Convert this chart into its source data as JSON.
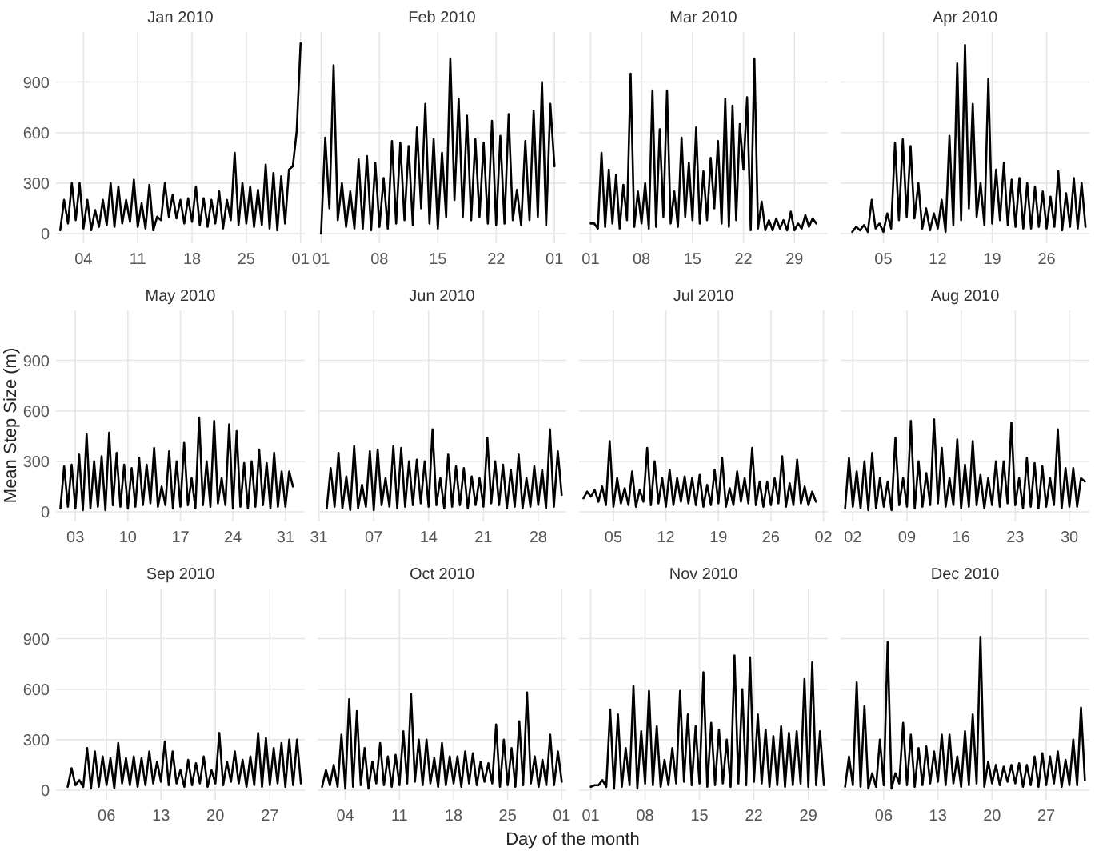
{
  "chart_data": [
    {
      "type": "line",
      "title": "Jan 2010",
      "color": "#000000",
      "grid": true,
      "ylim": [
        -57,
        1197
      ],
      "yticks": [
        0,
        300,
        600,
        900
      ],
      "xlim": [
        "2009-12-31T11:00",
        "2010-02-01T13:00"
      ],
      "xticks": [
        {
          "value": "2010-01-04",
          "label": "04"
        },
        {
          "value": "2010-01-11",
          "label": "11"
        },
        {
          "value": "2010-01-18",
          "label": "18"
        },
        {
          "value": "2010-01-25",
          "label": "25"
        },
        {
          "value": "2010-02-01",
          "label": "01"
        }
      ],
      "x": [
        "2010-01-01T00:00",
        "2010-01-01T12:00",
        "2010-01-02T00:00",
        "2010-01-02T12:00",
        "2010-01-03T00:00",
        "2010-01-03T12:00",
        "2010-01-04T00:00",
        "2010-01-04T12:00",
        "2010-01-05T00:00",
        "2010-01-05T12:00",
        "2010-01-06T00:00",
        "2010-01-06T12:00",
        "2010-01-07T00:00",
        "2010-01-07T12:00",
        "2010-01-08T00:00",
        "2010-01-08T12:00",
        "2010-01-09T00:00",
        "2010-01-09T12:00",
        "2010-01-10T00:00",
        "2010-01-10T12:00",
        "2010-01-11T00:00",
        "2010-01-11T12:00",
        "2010-01-12T00:00",
        "2010-01-12T12:00",
        "2010-01-13T00:00",
        "2010-01-13T12:00",
        "2010-01-14T00:00",
        "2010-01-14T12:00",
        "2010-01-15T00:00",
        "2010-01-15T12:00",
        "2010-01-16T00:00",
        "2010-01-16T12:00",
        "2010-01-17T00:00",
        "2010-01-17T12:00",
        "2010-01-18T00:00",
        "2010-01-18T12:00",
        "2010-01-19T00:00",
        "2010-01-19T12:00",
        "2010-01-20T00:00",
        "2010-01-20T12:00",
        "2010-01-21T00:00",
        "2010-01-21T12:00",
        "2010-01-22T00:00",
        "2010-01-22T12:00",
        "2010-01-23T00:00",
        "2010-01-23T12:00",
        "2010-01-24T00:00",
        "2010-01-24T12:00",
        "2010-01-25T00:00",
        "2010-01-25T12:00",
        "2010-01-26T00:00",
        "2010-01-26T12:00",
        "2010-01-27T00:00",
        "2010-01-27T12:00",
        "2010-01-28T00:00",
        "2010-01-28T12:00",
        "2010-01-29T00:00",
        "2010-01-29T12:00",
        "2010-01-30T00:00",
        "2010-01-30T12:00",
        "2010-01-31T00:00",
        "2010-01-31T12:00",
        "2010-02-01T00:00"
      ],
      "values": [
        20,
        200,
        60,
        300,
        80,
        300,
        30,
        200,
        20,
        140,
        40,
        200,
        50,
        300,
        40,
        280,
        60,
        200,
        70,
        320,
        40,
        180,
        30,
        290,
        20,
        100,
        80,
        300,
        100,
        230,
        90,
        200,
        60,
        210,
        70,
        280,
        50,
        210,
        40,
        200,
        60,
        250,
        30,
        200,
        80,
        480,
        50,
        300,
        60,
        280,
        40,
        260,
        50,
        410,
        30,
        360,
        20,
        340,
        60,
        380,
        400,
        610,
        1130
      ]
    },
    {
      "type": "line",
      "title": "Feb 2010",
      "color": "#000000",
      "grid": true,
      "tick_labels": "x",
      "ylim": [
        -57,
        1197
      ],
      "yticks": [
        0,
        300,
        600,
        900
      ],
      "xlim": [
        "2010-01-31T14:00",
        "2010-03-02T10:00"
      ],
      "xticks": [
        {
          "value": "2010-02-01",
          "label": "01"
        },
        {
          "value": "2010-02-08",
          "label": "08"
        },
        {
          "value": "2010-02-15",
          "label": "15"
        },
        {
          "value": "2010-02-22",
          "label": "22"
        },
        {
          "value": "2010-03-01",
          "label": "01"
        }
      ],
      "x": [
        "2010-02-01T00:00",
        "2010-02-01T12:00",
        "2010-02-02T00:00",
        "2010-02-02T12:00",
        "2010-02-03T00:00",
        "2010-02-03T12:00",
        "2010-02-04T00:00",
        "2010-02-04T12:00",
        "2010-02-05T00:00",
        "2010-02-05T12:00",
        "2010-02-06T00:00",
        "2010-02-06T12:00",
        "2010-02-07T00:00",
        "2010-02-07T12:00",
        "2010-02-08T00:00",
        "2010-02-08T12:00",
        "2010-02-09T00:00",
        "2010-02-09T12:00",
        "2010-02-10T00:00",
        "2010-02-10T12:00",
        "2010-02-11T00:00",
        "2010-02-11T12:00",
        "2010-02-12T00:00",
        "2010-02-12T12:00",
        "2010-02-13T00:00",
        "2010-02-13T12:00",
        "2010-02-14T00:00",
        "2010-02-14T12:00",
        "2010-02-15T00:00",
        "2010-02-15T12:00",
        "2010-02-16T00:00",
        "2010-02-16T12:00",
        "2010-02-17T00:00",
        "2010-02-17T12:00",
        "2010-02-18T00:00",
        "2010-02-18T12:00",
        "2010-02-19T00:00",
        "2010-02-19T12:00",
        "2010-02-20T00:00",
        "2010-02-20T12:00",
        "2010-02-21T00:00",
        "2010-02-21T12:00",
        "2010-02-22T00:00",
        "2010-02-22T12:00",
        "2010-02-23T00:00",
        "2010-02-23T12:00",
        "2010-02-24T00:00",
        "2010-02-24T12:00",
        "2010-02-25T00:00",
        "2010-02-25T12:00",
        "2010-02-26T00:00",
        "2010-02-26T12:00",
        "2010-02-27T00:00",
        "2010-02-27T12:00",
        "2010-02-28T00:00",
        "2010-02-28T12:00",
        "2010-03-01T00:00"
      ],
      "values": [
        0,
        570,
        150,
        1000,
        80,
        300,
        40,
        250,
        30,
        440,
        30,
        460,
        20,
        420,
        40,
        330,
        30,
        550,
        60,
        540,
        80,
        520,
        50,
        630,
        150,
        770,
        60,
        560,
        30,
        480,
        100,
        1040,
        200,
        800,
        100,
        700,
        80,
        560,
        100,
        540,
        60,
        670,
        50,
        580,
        60,
        710,
        80,
        260,
        50,
        550,
        80,
        730,
        100,
        900,
        50,
        770,
        400
      ]
    },
    {
      "type": "line",
      "title": "Mar 2010",
      "color": "#000000",
      "grid": true,
      "tick_labels": "x",
      "ylim": [
        -57,
        1197
      ],
      "yticks": [
        0,
        300,
        600,
        900
      ],
      "xlim": [
        "2010-02-27T10:00",
        "2010-04-02T14:00"
      ],
      "xticks": [
        {
          "value": "2010-03-01",
          "label": "01"
        },
        {
          "value": "2010-03-08",
          "label": "08"
        },
        {
          "value": "2010-03-15",
          "label": "15"
        },
        {
          "value": "2010-03-22",
          "label": "22"
        },
        {
          "value": "2010-03-29",
          "label": "29"
        }
      ],
      "x": [
        "2010-03-01T00:00",
        "2010-03-01T12:00",
        "2010-03-02T00:00",
        "2010-03-02T12:00",
        "2010-03-03T00:00",
        "2010-03-03T12:00",
        "2010-03-04T00:00",
        "2010-03-04T12:00",
        "2010-03-05T00:00",
        "2010-03-05T12:00",
        "2010-03-06T00:00",
        "2010-03-06T12:00",
        "2010-03-07T00:00",
        "2010-03-07T12:00",
        "2010-03-08T00:00",
        "2010-03-08T12:00",
        "2010-03-09T00:00",
        "2010-03-09T12:00",
        "2010-03-10T00:00",
        "2010-03-10T12:00",
        "2010-03-11T00:00",
        "2010-03-11T12:00",
        "2010-03-12T00:00",
        "2010-03-12T12:00",
        "2010-03-13T00:00",
        "2010-03-13T12:00",
        "2010-03-14T00:00",
        "2010-03-14T12:00",
        "2010-03-15T00:00",
        "2010-03-15T12:00",
        "2010-03-16T00:00",
        "2010-03-16T12:00",
        "2010-03-17T00:00",
        "2010-03-17T12:00",
        "2010-03-18T00:00",
        "2010-03-18T12:00",
        "2010-03-19T00:00",
        "2010-03-19T12:00",
        "2010-03-20T00:00",
        "2010-03-20T12:00",
        "2010-03-21T00:00",
        "2010-03-21T12:00",
        "2010-03-22T00:00",
        "2010-03-22T12:00",
        "2010-03-23T00:00",
        "2010-03-23T12:00",
        "2010-03-24T00:00",
        "2010-03-24T12:00",
        "2010-03-25T00:00",
        "2010-03-25T12:00",
        "2010-03-26T00:00",
        "2010-03-26T12:00",
        "2010-03-27T00:00",
        "2010-03-27T12:00",
        "2010-03-28T00:00",
        "2010-03-28T12:00",
        "2010-03-29T00:00",
        "2010-03-29T12:00",
        "2010-03-30T00:00",
        "2010-03-30T12:00",
        "2010-03-31T00:00",
        "2010-03-31T12:00",
        "2010-04-01T00:00"
      ],
      "values": [
        60,
        60,
        30,
        480,
        40,
        380,
        60,
        350,
        30,
        290,
        80,
        950,
        40,
        250,
        60,
        300,
        30,
        850,
        40,
        620,
        100,
        850,
        60,
        250,
        40,
        570,
        100,
        420,
        80,
        630,
        60,
        370,
        80,
        450,
        150,
        550,
        60,
        800,
        40,
        760,
        80,
        650,
        380,
        810,
        20,
        1040,
        30,
        190,
        20,
        80,
        20,
        90,
        30,
        80,
        20,
        130,
        20,
        60,
        30,
        110,
        40,
        90,
        60
      ]
    },
    {
      "type": "line",
      "title": "Apr 2010",
      "color": "#000000",
      "grid": true,
      "tick_labels": "x",
      "ylim": [
        -57,
        1197
      ],
      "yticks": [
        0,
        300,
        600,
        900
      ],
      "xlim": [
        "2010-03-30T12:00",
        "2010-05-01T12:00"
      ],
      "xticks": [
        {
          "value": "2010-04-05",
          "label": "05"
        },
        {
          "value": "2010-04-12",
          "label": "12"
        },
        {
          "value": "2010-04-19",
          "label": "19"
        },
        {
          "value": "2010-04-26",
          "label": "26"
        }
      ],
      "x": [
        "2010-04-01T00:00",
        "2010-04-01T12:00",
        "2010-04-02T00:00",
        "2010-04-02T12:00",
        "2010-04-03T00:00",
        "2010-04-03T12:00",
        "2010-04-04T00:00",
        "2010-04-04T12:00",
        "2010-04-05T00:00",
        "2010-04-05T12:00",
        "2010-04-06T00:00",
        "2010-04-06T12:00",
        "2010-04-07T00:00",
        "2010-04-07T12:00",
        "2010-04-08T00:00",
        "2010-04-08T12:00",
        "2010-04-09T00:00",
        "2010-04-09T12:00",
        "2010-04-10T00:00",
        "2010-04-10T12:00",
        "2010-04-11T00:00",
        "2010-04-11T12:00",
        "2010-04-12T00:00",
        "2010-04-12T12:00",
        "2010-04-13T00:00",
        "2010-04-13T12:00",
        "2010-04-14T00:00",
        "2010-04-14T12:00",
        "2010-04-15T00:00",
        "2010-04-15T12:00",
        "2010-04-16T00:00",
        "2010-04-16T12:00",
        "2010-04-17T00:00",
        "2010-04-17T12:00",
        "2010-04-18T00:00",
        "2010-04-18T12:00",
        "2010-04-19T00:00",
        "2010-04-19T12:00",
        "2010-04-20T00:00",
        "2010-04-20T12:00",
        "2010-04-21T00:00",
        "2010-04-21T12:00",
        "2010-04-22T00:00",
        "2010-04-22T12:00",
        "2010-04-23T00:00",
        "2010-04-23T12:00",
        "2010-04-24T00:00",
        "2010-04-24T12:00",
        "2010-04-25T00:00",
        "2010-04-25T12:00",
        "2010-04-26T00:00",
        "2010-04-26T12:00",
        "2010-04-27T00:00",
        "2010-04-27T12:00",
        "2010-04-28T00:00",
        "2010-04-28T12:00",
        "2010-04-29T00:00",
        "2010-04-29T12:00",
        "2010-04-30T00:00",
        "2010-04-30T12:00",
        "2010-05-01T00:00"
      ],
      "values": [
        10,
        40,
        20,
        50,
        10,
        200,
        30,
        60,
        10,
        120,
        30,
        540,
        80,
        560,
        100,
        520,
        90,
        300,
        30,
        150,
        20,
        120,
        30,
        200,
        10,
        580,
        50,
        1010,
        80,
        1120,
        150,
        770,
        100,
        300,
        50,
        920,
        60,
        380,
        80,
        420,
        50,
        320,
        40,
        330,
        30,
        300,
        30,
        280,
        40,
        250,
        30,
        220,
        40,
        370,
        20,
        240,
        40,
        330,
        30,
        300,
        40
      ]
    },
    {
      "type": "line",
      "title": "May 2010",
      "ylabel": "Mean Step Size (m)",
      "color": "#000000",
      "grid": true,
      "ylim": [
        -57,
        1197
      ],
      "yticks": [
        0,
        300,
        600,
        900
      ],
      "xlim": [
        "2010-04-30T10:00",
        "2010-06-02T14:00"
      ],
      "xticks": [
        {
          "value": "2010-05-03",
          "label": "03"
        },
        {
          "value": "2010-05-10",
          "label": "10"
        },
        {
          "value": "2010-05-17",
          "label": "17"
        },
        {
          "value": "2010-05-24",
          "label": "24"
        },
        {
          "value": "2010-05-31",
          "label": "31"
        }
      ],
      "x": [
        "2010-05-01T00:00",
        "2010-05-01T12:00",
        "2010-05-02T00:00",
        "2010-05-02T12:00",
        "2010-05-03T00:00",
        "2010-05-03T12:00",
        "2010-05-04T00:00",
        "2010-05-04T12:00",
        "2010-05-05T00:00",
        "2010-05-05T12:00",
        "2010-05-06T00:00",
        "2010-05-06T12:00",
        "2010-05-07T00:00",
        "2010-05-07T12:00",
        "2010-05-08T00:00",
        "2010-05-08T12:00",
        "2010-05-09T00:00",
        "2010-05-09T12:00",
        "2010-05-10T00:00",
        "2010-05-10T12:00",
        "2010-05-11T00:00",
        "2010-05-11T12:00",
        "2010-05-12T00:00",
        "2010-05-12T12:00",
        "2010-05-13T00:00",
        "2010-05-13T12:00",
        "2010-05-14T00:00",
        "2010-05-14T12:00",
        "2010-05-15T00:00",
        "2010-05-15T12:00",
        "2010-05-16T00:00",
        "2010-05-16T12:00",
        "2010-05-17T00:00",
        "2010-05-17T12:00",
        "2010-05-18T00:00",
        "2010-05-18T12:00",
        "2010-05-19T00:00",
        "2010-05-19T12:00",
        "2010-05-20T00:00",
        "2010-05-20T12:00",
        "2010-05-21T00:00",
        "2010-05-21T12:00",
        "2010-05-22T00:00",
        "2010-05-22T12:00",
        "2010-05-23T00:00",
        "2010-05-23T12:00",
        "2010-05-24T00:00",
        "2010-05-24T12:00",
        "2010-05-25T00:00",
        "2010-05-25T12:00",
        "2010-05-26T00:00",
        "2010-05-26T12:00",
        "2010-05-27T00:00",
        "2010-05-27T12:00",
        "2010-05-28T00:00",
        "2010-05-28T12:00",
        "2010-05-29T00:00",
        "2010-05-29T12:00",
        "2010-05-30T00:00",
        "2010-05-30T12:00",
        "2010-05-31T00:00",
        "2010-05-31T12:00",
        "2010-06-01T00:00"
      ],
      "values": [
        20,
        270,
        30,
        280,
        20,
        340,
        10,
        460,
        20,
        300,
        30,
        330,
        10,
        470,
        40,
        350,
        30,
        280,
        20,
        260,
        30,
        320,
        40,
        280,
        50,
        380,
        30,
        150,
        40,
        360,
        20,
        300,
        30,
        410,
        40,
        200,
        20,
        560,
        40,
        300,
        30,
        540,
        50,
        200,
        40,
        520,
        20,
        480,
        30,
        290,
        20,
        300,
        30,
        370,
        40,
        290,
        20,
        350,
        30,
        240,
        30,
        240,
        150
      ]
    },
    {
      "type": "line",
      "title": "Jun 2010",
      "color": "#000000",
      "grid": true,
      "tick_labels": "x",
      "ylim": [
        -57,
        1197
      ],
      "yticks": [
        0,
        300,
        600,
        900
      ],
      "xlim": [
        "2010-05-30T20:00",
        "2010-07-01T14:00"
      ],
      "xticks": [
        {
          "value": "2010-05-31",
          "label": "31"
        },
        {
          "value": "2010-06-07",
          "label": "07"
        },
        {
          "value": "2010-06-14",
          "label": "14"
        },
        {
          "value": "2010-06-21",
          "label": "21"
        },
        {
          "value": "2010-06-28",
          "label": "28"
        }
      ],
      "x": [
        "2010-06-01T00:00",
        "2010-06-01T12:00",
        "2010-06-02T00:00",
        "2010-06-02T12:00",
        "2010-06-03T00:00",
        "2010-06-03T12:00",
        "2010-06-04T00:00",
        "2010-06-04T12:00",
        "2010-06-05T00:00",
        "2010-06-05T12:00",
        "2010-06-06T00:00",
        "2010-06-06T12:00",
        "2010-06-07T00:00",
        "2010-06-07T12:00",
        "2010-06-08T00:00",
        "2010-06-08T12:00",
        "2010-06-09T00:00",
        "2010-06-09T12:00",
        "2010-06-10T00:00",
        "2010-06-10T12:00",
        "2010-06-11T00:00",
        "2010-06-11T12:00",
        "2010-06-12T00:00",
        "2010-06-12T12:00",
        "2010-06-13T00:00",
        "2010-06-13T12:00",
        "2010-06-14T00:00",
        "2010-06-14T12:00",
        "2010-06-15T00:00",
        "2010-06-15T12:00",
        "2010-06-16T00:00",
        "2010-06-16T12:00",
        "2010-06-17T00:00",
        "2010-06-17T12:00",
        "2010-06-18T00:00",
        "2010-06-18T12:00",
        "2010-06-19T00:00",
        "2010-06-19T12:00",
        "2010-06-20T00:00",
        "2010-06-20T12:00",
        "2010-06-21T00:00",
        "2010-06-21T12:00",
        "2010-06-22T00:00",
        "2010-06-22T12:00",
        "2010-06-23T00:00",
        "2010-06-23T12:00",
        "2010-06-24T00:00",
        "2010-06-24T12:00",
        "2010-06-25T00:00",
        "2010-06-25T12:00",
        "2010-06-26T00:00",
        "2010-06-26T12:00",
        "2010-06-27T00:00",
        "2010-06-27T12:00",
        "2010-06-28T00:00",
        "2010-06-28T12:00",
        "2010-06-29T00:00",
        "2010-06-29T12:00",
        "2010-06-30T00:00",
        "2010-06-30T12:00",
        "2010-07-01T00:00"
      ],
      "values": [
        20,
        260,
        30,
        350,
        20,
        210,
        10,
        390,
        20,
        160,
        30,
        360,
        10,
        370,
        40,
        200,
        30,
        390,
        20,
        380,
        30,
        300,
        40,
        310,
        50,
        300,
        30,
        490,
        40,
        200,
        20,
        340,
        30,
        270,
        40,
        260,
        20,
        210,
        40,
        200,
        30,
        440,
        50,
        300,
        40,
        280,
        20,
        250,
        30,
        340,
        20,
        200,
        30,
        270,
        40,
        250,
        20,
        490,
        30,
        360,
        100
      ]
    },
    {
      "type": "line",
      "title": "Jul 2010",
      "color": "#000000",
      "grid": true,
      "tick_labels": "x",
      "ylim": [
        -57,
        1197
      ],
      "yticks": [
        0,
        300,
        600,
        900
      ],
      "xlim": [
        "2010-06-30T10:00",
        "2010-08-02T14:00"
      ],
      "xticks": [
        {
          "value": "2010-07-05",
          "label": "05"
        },
        {
          "value": "2010-07-12",
          "label": "12"
        },
        {
          "value": "2010-07-19",
          "label": "19"
        },
        {
          "value": "2010-07-26",
          "label": "26"
        },
        {
          "value": "2010-08-02",
          "label": "02"
        }
      ],
      "x": [
        "2010-07-01T00:00",
        "2010-07-01T12:00",
        "2010-07-02T00:00",
        "2010-07-02T12:00",
        "2010-07-03T00:00",
        "2010-07-03T12:00",
        "2010-07-04T00:00",
        "2010-07-04T12:00",
        "2010-07-05T00:00",
        "2010-07-05T12:00",
        "2010-07-06T00:00",
        "2010-07-06T12:00",
        "2010-07-07T00:00",
        "2010-07-07T12:00",
        "2010-07-08T00:00",
        "2010-07-08T12:00",
        "2010-07-09T00:00",
        "2010-07-09T12:00",
        "2010-07-10T00:00",
        "2010-07-10T12:00",
        "2010-07-11T00:00",
        "2010-07-11T12:00",
        "2010-07-12T00:00",
        "2010-07-12T12:00",
        "2010-07-13T00:00",
        "2010-07-13T12:00",
        "2010-07-14T00:00",
        "2010-07-14T12:00",
        "2010-07-15T00:00",
        "2010-07-15T12:00",
        "2010-07-16T00:00",
        "2010-07-16T12:00",
        "2010-07-17T00:00",
        "2010-07-17T12:00",
        "2010-07-18T00:00",
        "2010-07-18T12:00",
        "2010-07-19T00:00",
        "2010-07-19T12:00",
        "2010-07-20T00:00",
        "2010-07-20T12:00",
        "2010-07-21T00:00",
        "2010-07-21T12:00",
        "2010-07-22T00:00",
        "2010-07-22T12:00",
        "2010-07-23T00:00",
        "2010-07-23T12:00",
        "2010-07-24T00:00",
        "2010-07-24T12:00",
        "2010-07-25T00:00",
        "2010-07-25T12:00",
        "2010-07-26T00:00",
        "2010-07-26T12:00",
        "2010-07-27T00:00",
        "2010-07-27T12:00",
        "2010-07-28T00:00",
        "2010-07-28T12:00",
        "2010-07-29T00:00",
        "2010-07-29T12:00",
        "2010-07-30T00:00",
        "2010-07-30T12:00",
        "2010-07-31T00:00",
        "2010-07-31T12:00",
        "2010-08-01T00:00"
      ],
      "values": [
        80,
        120,
        90,
        130,
        60,
        150,
        40,
        420,
        30,
        200,
        50,
        140,
        40,
        240,
        30,
        130,
        60,
        380,
        40,
        300,
        50,
        200,
        30,
        250,
        40,
        200,
        60,
        210,
        50,
        200,
        40,
        220,
        30,
        160,
        40,
        250,
        50,
        320,
        30,
        140,
        40,
        240,
        60,
        200,
        50,
        380,
        40,
        180,
        30,
        180,
        40,
        200,
        50,
        330,
        30,
        170,
        40,
        310,
        50,
        150,
        40,
        120,
        60
      ]
    },
    {
      "type": "line",
      "title": "Aug 2010",
      "color": "#000000",
      "grid": true,
      "tick_labels": "x",
      "ylim": [
        -57,
        1197
      ],
      "yticks": [
        0,
        300,
        600,
        900
      ],
      "xlim": [
        "2010-07-31T10:00",
        "2010-09-01T14:00"
      ],
      "xticks": [
        {
          "value": "2010-08-02",
          "label": "02"
        },
        {
          "value": "2010-08-09",
          "label": "09"
        },
        {
          "value": "2010-08-16",
          "label": "16"
        },
        {
          "value": "2010-08-23",
          "label": "23"
        },
        {
          "value": "2010-08-30",
          "label": "30"
        }
      ],
      "x": [
        "2010-08-01T00:00",
        "2010-08-01T12:00",
        "2010-08-02T00:00",
        "2010-08-02T12:00",
        "2010-08-03T00:00",
        "2010-08-03T12:00",
        "2010-08-04T00:00",
        "2010-08-04T12:00",
        "2010-08-05T00:00",
        "2010-08-05T12:00",
        "2010-08-06T00:00",
        "2010-08-06T12:00",
        "2010-08-07T00:00",
        "2010-08-07T12:00",
        "2010-08-08T00:00",
        "2010-08-08T12:00",
        "2010-08-09T00:00",
        "2010-08-09T12:00",
        "2010-08-10T00:00",
        "2010-08-10T12:00",
        "2010-08-11T00:00",
        "2010-08-11T12:00",
        "2010-08-12T00:00",
        "2010-08-12T12:00",
        "2010-08-13T00:00",
        "2010-08-13T12:00",
        "2010-08-14T00:00",
        "2010-08-14T12:00",
        "2010-08-15T00:00",
        "2010-08-15T12:00",
        "2010-08-16T00:00",
        "2010-08-16T12:00",
        "2010-08-17T00:00",
        "2010-08-17T12:00",
        "2010-08-18T00:00",
        "2010-08-18T12:00",
        "2010-08-19T00:00",
        "2010-08-19T12:00",
        "2010-08-20T00:00",
        "2010-08-20T12:00",
        "2010-08-21T00:00",
        "2010-08-21T12:00",
        "2010-08-22T00:00",
        "2010-08-22T12:00",
        "2010-08-23T00:00",
        "2010-08-23T12:00",
        "2010-08-24T00:00",
        "2010-08-24T12:00",
        "2010-08-25T00:00",
        "2010-08-25T12:00",
        "2010-08-26T00:00",
        "2010-08-26T12:00",
        "2010-08-27T00:00",
        "2010-08-27T12:00",
        "2010-08-28T00:00",
        "2010-08-28T12:00",
        "2010-08-29T00:00",
        "2010-08-29T12:00",
        "2010-08-30T00:00",
        "2010-08-30T12:00",
        "2010-08-31T00:00",
        "2010-08-31T12:00",
        "2010-09-01T00:00"
      ],
      "values": [
        20,
        320,
        30,
        240,
        20,
        300,
        10,
        350,
        20,
        200,
        30,
        180,
        10,
        440,
        40,
        200,
        30,
        540,
        20,
        300,
        30,
        230,
        40,
        550,
        50,
        380,
        30,
        200,
        40,
        430,
        20,
        280,
        30,
        420,
        40,
        220,
        20,
        200,
        40,
        300,
        30,
        300,
        50,
        530,
        40,
        200,
        20,
        320,
        30,
        290,
        20,
        270,
        30,
        200,
        40,
        490,
        20,
        260,
        30,
        260,
        30,
        200,
        180
      ]
    },
    {
      "type": "line",
      "title": "Sep 2010",
      "color": "#000000",
      "grid": true,
      "ylim": [
        -57,
        1197
      ],
      "yticks": [
        0,
        300,
        600,
        900
      ],
      "xlim": [
        "2010-08-30T12:00",
        "2010-10-01T12:00"
      ],
      "xticks": [
        {
          "value": "2010-09-06",
          "label": "06"
        },
        {
          "value": "2010-09-13",
          "label": "13"
        },
        {
          "value": "2010-09-20",
          "label": "20"
        },
        {
          "value": "2010-09-27",
          "label": "27"
        }
      ],
      "x": [
        "2010-09-01T00:00",
        "2010-09-01T12:00",
        "2010-09-02T00:00",
        "2010-09-02T12:00",
        "2010-09-03T00:00",
        "2010-09-03T12:00",
        "2010-09-04T00:00",
        "2010-09-04T12:00",
        "2010-09-05T00:00",
        "2010-09-05T12:00",
        "2010-09-06T00:00",
        "2010-09-06T12:00",
        "2010-09-07T00:00",
        "2010-09-07T12:00",
        "2010-09-08T00:00",
        "2010-09-08T12:00",
        "2010-09-09T00:00",
        "2010-09-09T12:00",
        "2010-09-10T00:00",
        "2010-09-10T12:00",
        "2010-09-11T00:00",
        "2010-09-11T12:00",
        "2010-09-12T00:00",
        "2010-09-12T12:00",
        "2010-09-13T00:00",
        "2010-09-13T12:00",
        "2010-09-14T00:00",
        "2010-09-14T12:00",
        "2010-09-15T00:00",
        "2010-09-15T12:00",
        "2010-09-16T00:00",
        "2010-09-16T12:00",
        "2010-09-17T00:00",
        "2010-09-17T12:00",
        "2010-09-18T00:00",
        "2010-09-18T12:00",
        "2010-09-19T00:00",
        "2010-09-19T12:00",
        "2010-09-20T00:00",
        "2010-09-20T12:00",
        "2010-09-21T00:00",
        "2010-09-21T12:00",
        "2010-09-22T00:00",
        "2010-09-22T12:00",
        "2010-09-23T00:00",
        "2010-09-23T12:00",
        "2010-09-24T00:00",
        "2010-09-24T12:00",
        "2010-09-25T00:00",
        "2010-09-25T12:00",
        "2010-09-26T00:00",
        "2010-09-26T12:00",
        "2010-09-27T00:00",
        "2010-09-27T12:00",
        "2010-09-28T00:00",
        "2010-09-28T12:00",
        "2010-09-29T00:00",
        "2010-09-29T12:00",
        "2010-09-30T00:00",
        "2010-09-30T12:00",
        "2010-10-01T00:00"
      ],
      "values": [
        20,
        130,
        30,
        60,
        20,
        250,
        10,
        230,
        20,
        200,
        30,
        190,
        10,
        280,
        40,
        190,
        30,
        200,
        20,
        190,
        30,
        230,
        40,
        170,
        50,
        290,
        30,
        230,
        40,
        120,
        20,
        180,
        30,
        160,
        40,
        200,
        20,
        120,
        40,
        340,
        30,
        170,
        50,
        230,
        40,
        180,
        20,
        200,
        30,
        340,
        20,
        310,
        30,
        250,
        40,
        280,
        20,
        300,
        30,
        300,
        40
      ]
    },
    {
      "type": "line",
      "title": "Oct 2010",
      "xlabel": "Day of the month",
      "color": "#000000",
      "grid": true,
      "tick_labels": "x",
      "ylim": [
        -57,
        1197
      ],
      "yticks": [
        0,
        300,
        600,
        900
      ],
      "xlim": [
        "2010-09-30T10:00",
        "2010-11-01T14:00"
      ],
      "xticks": [
        {
          "value": "2010-10-04",
          "label": "04"
        },
        {
          "value": "2010-10-11",
          "label": "11"
        },
        {
          "value": "2010-10-18",
          "label": "18"
        },
        {
          "value": "2010-10-25",
          "label": "25"
        },
        {
          "value": "2010-11-01",
          "label": "01"
        }
      ],
      "x": [
        "2010-10-01T00:00",
        "2010-10-01T12:00",
        "2010-10-02T00:00",
        "2010-10-02T12:00",
        "2010-10-03T00:00",
        "2010-10-03T12:00",
        "2010-10-04T00:00",
        "2010-10-04T12:00",
        "2010-10-05T00:00",
        "2010-10-05T12:00",
        "2010-10-06T00:00",
        "2010-10-06T12:00",
        "2010-10-07T00:00",
        "2010-10-07T12:00",
        "2010-10-08T00:00",
        "2010-10-08T12:00",
        "2010-10-09T00:00",
        "2010-10-09T12:00",
        "2010-10-10T00:00",
        "2010-10-10T12:00",
        "2010-10-11T00:00",
        "2010-10-11T12:00",
        "2010-10-12T00:00",
        "2010-10-12T12:00",
        "2010-10-13T00:00",
        "2010-10-13T12:00",
        "2010-10-14T00:00",
        "2010-10-14T12:00",
        "2010-10-15T00:00",
        "2010-10-15T12:00",
        "2010-10-16T00:00",
        "2010-10-16T12:00",
        "2010-10-17T00:00",
        "2010-10-17T12:00",
        "2010-10-18T00:00",
        "2010-10-18T12:00",
        "2010-10-19T00:00",
        "2010-10-19T12:00",
        "2010-10-20T00:00",
        "2010-10-20T12:00",
        "2010-10-21T00:00",
        "2010-10-21T12:00",
        "2010-10-22T00:00",
        "2010-10-22T12:00",
        "2010-10-23T00:00",
        "2010-10-23T12:00",
        "2010-10-24T00:00",
        "2010-10-24T12:00",
        "2010-10-25T00:00",
        "2010-10-25T12:00",
        "2010-10-26T00:00",
        "2010-10-26T12:00",
        "2010-10-27T00:00",
        "2010-10-27T12:00",
        "2010-10-28T00:00",
        "2010-10-28T12:00",
        "2010-10-29T00:00",
        "2010-10-29T12:00",
        "2010-10-30T00:00",
        "2010-10-30T12:00",
        "2010-10-31T00:00",
        "2010-10-31T12:00",
        "2010-11-01T00:00"
      ],
      "values": [
        20,
        120,
        30,
        150,
        20,
        330,
        10,
        540,
        20,
        470,
        30,
        250,
        10,
        170,
        40,
        280,
        30,
        200,
        20,
        210,
        30,
        350,
        40,
        570,
        50,
        300,
        30,
        300,
        40,
        190,
        20,
        280,
        30,
        200,
        40,
        200,
        20,
        230,
        40,
        220,
        30,
        170,
        50,
        160,
        40,
        390,
        20,
        300,
        30,
        250,
        20,
        410,
        30,
        580,
        40,
        200,
        20,
        180,
        30,
        330,
        30,
        230,
        50
      ]
    },
    {
      "type": "line",
      "title": "Nov 2010",
      "color": "#000000",
      "grid": true,
      "tick_labels": "x",
      "ylim": [
        -57,
        1197
      ],
      "yticks": [
        0,
        300,
        600,
        900
      ],
      "xlim": [
        "2010-10-30T12:00",
        "2010-12-01T12:00"
      ],
      "xticks": [
        {
          "value": "2010-11-01",
          "label": "01"
        },
        {
          "value": "2010-11-08",
          "label": "08"
        },
        {
          "value": "2010-11-15",
          "label": "15"
        },
        {
          "value": "2010-11-22",
          "label": "22"
        },
        {
          "value": "2010-11-29",
          "label": "29"
        }
      ],
      "x": [
        "2010-11-01T00:00",
        "2010-11-01T12:00",
        "2010-11-02T00:00",
        "2010-11-02T12:00",
        "2010-11-03T00:00",
        "2010-11-03T12:00",
        "2010-11-04T00:00",
        "2010-11-04T12:00",
        "2010-11-05T00:00",
        "2010-11-05T12:00",
        "2010-11-06T00:00",
        "2010-11-06T12:00",
        "2010-11-07T00:00",
        "2010-11-07T12:00",
        "2010-11-08T00:00",
        "2010-11-08T12:00",
        "2010-11-09T00:00",
        "2010-11-09T12:00",
        "2010-11-10T00:00",
        "2010-11-10T12:00",
        "2010-11-11T00:00",
        "2010-11-11T12:00",
        "2010-11-12T00:00",
        "2010-11-12T12:00",
        "2010-11-13T00:00",
        "2010-11-13T12:00",
        "2010-11-14T00:00",
        "2010-11-14T12:00",
        "2010-11-15T00:00",
        "2010-11-15T12:00",
        "2010-11-16T00:00",
        "2010-11-16T12:00",
        "2010-11-17T00:00",
        "2010-11-17T12:00",
        "2010-11-18T00:00",
        "2010-11-18T12:00",
        "2010-11-19T00:00",
        "2010-11-19T12:00",
        "2010-11-20T00:00",
        "2010-11-20T12:00",
        "2010-11-21T00:00",
        "2010-11-21T12:00",
        "2010-11-22T00:00",
        "2010-11-22T12:00",
        "2010-11-23T00:00",
        "2010-11-23T12:00",
        "2010-11-24T00:00",
        "2010-11-24T12:00",
        "2010-11-25T00:00",
        "2010-11-25T12:00",
        "2010-11-26T00:00",
        "2010-11-26T12:00",
        "2010-11-27T00:00",
        "2010-11-27T12:00",
        "2010-11-28T00:00",
        "2010-11-28T12:00",
        "2010-11-29T00:00",
        "2010-11-29T12:00",
        "2010-11-30T00:00",
        "2010-11-30T12:00",
        "2010-12-01T00:00"
      ],
      "values": [
        20,
        30,
        30,
        60,
        20,
        480,
        10,
        450,
        20,
        250,
        30,
        620,
        10,
        350,
        40,
        590,
        30,
        380,
        20,
        180,
        30,
        250,
        40,
        590,
        50,
        450,
        30,
        380,
        40,
        700,
        20,
        400,
        30,
        360,
        40,
        300,
        20,
        800,
        40,
        600,
        30,
        790,
        50,
        450,
        40,
        360,
        20,
        320,
        30,
        380,
        20,
        340,
        30,
        350,
        40,
        660,
        20,
        760,
        30,
        350,
        30
      ]
    },
    {
      "type": "line",
      "title": "Dec 2010",
      "color": "#000000",
      "grid": true,
      "tick_labels": "x",
      "ylim": [
        -57,
        1197
      ],
      "yticks": [
        0,
        300,
        600,
        900
      ],
      "xlim": [
        "2010-11-30T10:00",
        "2011-01-01T14:00"
      ],
      "xticks": [
        {
          "value": "2010-12-06",
          "label": "06"
        },
        {
          "value": "2010-12-13",
          "label": "13"
        },
        {
          "value": "2010-12-20",
          "label": "20"
        },
        {
          "value": "2010-12-27",
          "label": "27"
        }
      ],
      "x": [
        "2010-12-01T00:00",
        "2010-12-01T12:00",
        "2010-12-02T00:00",
        "2010-12-02T12:00",
        "2010-12-03T00:00",
        "2010-12-03T12:00",
        "2010-12-04T00:00",
        "2010-12-04T12:00",
        "2010-12-05T00:00",
        "2010-12-05T12:00",
        "2010-12-06T00:00",
        "2010-12-06T12:00",
        "2010-12-07T00:00",
        "2010-12-07T12:00",
        "2010-12-08T00:00",
        "2010-12-08T12:00",
        "2010-12-09T00:00",
        "2010-12-09T12:00",
        "2010-12-10T00:00",
        "2010-12-10T12:00",
        "2010-12-11T00:00",
        "2010-12-11T12:00",
        "2010-12-12T00:00",
        "2010-12-12T12:00",
        "2010-12-13T00:00",
        "2010-12-13T12:00",
        "2010-12-14T00:00",
        "2010-12-14T12:00",
        "2010-12-15T00:00",
        "2010-12-15T12:00",
        "2010-12-16T00:00",
        "2010-12-16T12:00",
        "2010-12-17T00:00",
        "2010-12-17T12:00",
        "2010-12-18T00:00",
        "2010-12-18T12:00",
        "2010-12-19T00:00",
        "2010-12-19T12:00",
        "2010-12-20T00:00",
        "2010-12-20T12:00",
        "2010-12-21T00:00",
        "2010-12-21T12:00",
        "2010-12-22T00:00",
        "2010-12-22T12:00",
        "2010-12-23T00:00",
        "2010-12-23T12:00",
        "2010-12-24T00:00",
        "2010-12-24T12:00",
        "2010-12-25T00:00",
        "2010-12-25T12:00",
        "2010-12-26T00:00",
        "2010-12-26T12:00",
        "2010-12-27T00:00",
        "2010-12-27T12:00",
        "2010-12-28T00:00",
        "2010-12-28T12:00",
        "2010-12-29T00:00",
        "2010-12-29T12:00",
        "2010-12-30T00:00",
        "2010-12-30T12:00",
        "2010-12-31T00:00",
        "2010-12-31T12:00",
        "2011-01-01T00:00"
      ],
      "values": [
        20,
        200,
        30,
        640,
        20,
        500,
        10,
        100,
        20,
        300,
        30,
        880,
        10,
        100,
        40,
        400,
        30,
        330,
        20,
        250,
        30,
        260,
        40,
        230,
        50,
        330,
        30,
        330,
        40,
        200,
        20,
        350,
        30,
        450,
        40,
        910,
        20,
        170,
        40,
        150,
        30,
        140,
        50,
        150,
        40,
        160,
        20,
        150,
        30,
        200,
        20,
        220,
        30,
        200,
        40,
        230,
        20,
        180,
        30,
        300,
        30,
        490,
        60
      ]
    }
  ]
}
